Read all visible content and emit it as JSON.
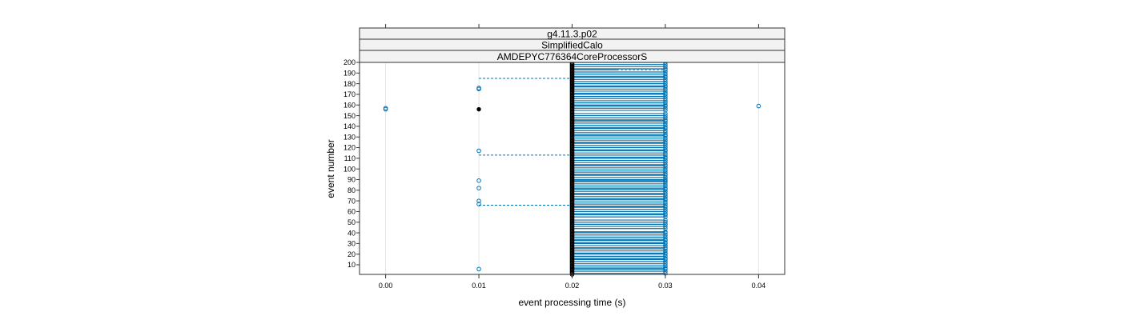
{
  "chart_data": {
    "type": "scatter",
    "strips": [
      "g4.11.3.p02",
      "SimplifiedCalo",
      "AMDEPYC776364CoreProcessorS"
    ],
    "xlabel": "event processing time (s)",
    "ylabel": "event number",
    "xlim": [
      -0.0028,
      0.0428
    ],
    "ylim": [
      1,
      200
    ],
    "x_ticks": [
      {
        "value": 0.0,
        "label": "0.00"
      },
      {
        "value": 0.01,
        "label": "0.01"
      },
      {
        "value": 0.02,
        "label": "0.02"
      },
      {
        "value": 0.03,
        "label": "0.03"
      },
      {
        "value": 0.04,
        "label": "0.04"
      }
    ],
    "y_ticks": [
      {
        "value": 10,
        "label": "10"
      },
      {
        "value": 20,
        "label": "20"
      },
      {
        "value": 30,
        "label": "30"
      },
      {
        "value": 40,
        "label": "40"
      },
      {
        "value": 50,
        "label": "50"
      },
      {
        "value": 60,
        "label": "60"
      },
      {
        "value": 70,
        "label": "70"
      },
      {
        "value": 80,
        "label": "80"
      },
      {
        "value": 90,
        "label": "90"
      },
      {
        "value": 100,
        "label": "100"
      },
      {
        "value": 110,
        "label": "110"
      },
      {
        "value": 120,
        "label": "120"
      },
      {
        "value": 130,
        "label": "130"
      },
      {
        "value": 140,
        "label": "140"
      },
      {
        "value": 150,
        "label": "150"
      },
      {
        "value": 160,
        "label": "160"
      },
      {
        "value": 170,
        "label": "170"
      },
      {
        "value": 180,
        "label": "180"
      },
      {
        "value": 190,
        "label": "190"
      },
      {
        "value": 200,
        "label": "200"
      }
    ],
    "grid_x": true,
    "colors": {
      "series": "#0072b2",
      "dark": "#000000",
      "frame": "#333333",
      "strip_bg": "#f2f2f2",
      "grid": "#e6e6e6"
    },
    "outlier_points": [
      {
        "x": 0.0,
        "y": 156
      },
      {
        "x": 0.0,
        "y": 157
      },
      {
        "x": 0.01,
        "y": 6
      },
      {
        "x": 0.01,
        "y": 67
      },
      {
        "x": 0.01,
        "y": 70
      },
      {
        "x": 0.01,
        "y": 82
      },
      {
        "x": 0.01,
        "y": 89
      },
      {
        "x": 0.01,
        "y": 117
      },
      {
        "x": 0.01,
        "y": 175
      },
      {
        "x": 0.01,
        "y": 176
      },
      {
        "x": 0.04,
        "y": 159
      }
    ],
    "dark_points": [
      {
        "x": 0.01,
        "y": 156
      }
    ],
    "dashed_segments": [
      {
        "x1": 0.01,
        "x2": 0.02,
        "y": 66
      },
      {
        "x1": 0.01,
        "x2": 0.02,
        "y": 113
      },
      {
        "x1": 0.01,
        "x2": 0.02,
        "y": 185
      },
      {
        "x1": 0.025,
        "x2": 0.03,
        "y": 32
      },
      {
        "x1": 0.025,
        "x2": 0.03,
        "y": 70
      },
      {
        "x1": 0.025,
        "x2": 0.03,
        "y": 100
      },
      {
        "x1": 0.025,
        "x2": 0.03,
        "y": 130
      },
      {
        "x1": 0.025,
        "x2": 0.03,
        "y": 190
      },
      {
        "x1": 0.025,
        "x2": 0.03,
        "y": 193
      }
    ],
    "thirty_ms_events": [
      2,
      4,
      6,
      7,
      9,
      11,
      13,
      15,
      16,
      18,
      20,
      21,
      23,
      25,
      26,
      28,
      30,
      31,
      33,
      34,
      36,
      38,
      40,
      41,
      44,
      46,
      48,
      50,
      52,
      55,
      57,
      58,
      60,
      62,
      64,
      65,
      67,
      69,
      71,
      72,
      74,
      76,
      77,
      79,
      81,
      82,
      84,
      86,
      88,
      89,
      90,
      92,
      94,
      95,
      97,
      99,
      101,
      103,
      104,
      106,
      108,
      110,
      111,
      113,
      115,
      117,
      118,
      120,
      122,
      124,
      125,
      127,
      129,
      131,
      132,
      134,
      136,
      138,
      139,
      141,
      143,
      145,
      146,
      148,
      150,
      152,
      155,
      157,
      159,
      160,
      162,
      164,
      166,
      168,
      170,
      171,
      173,
      175,
      177,
      178,
      180,
      182,
      184,
      186,
      187,
      189,
      191,
      193,
      194,
      196,
      198,
      200
    ]
  }
}
